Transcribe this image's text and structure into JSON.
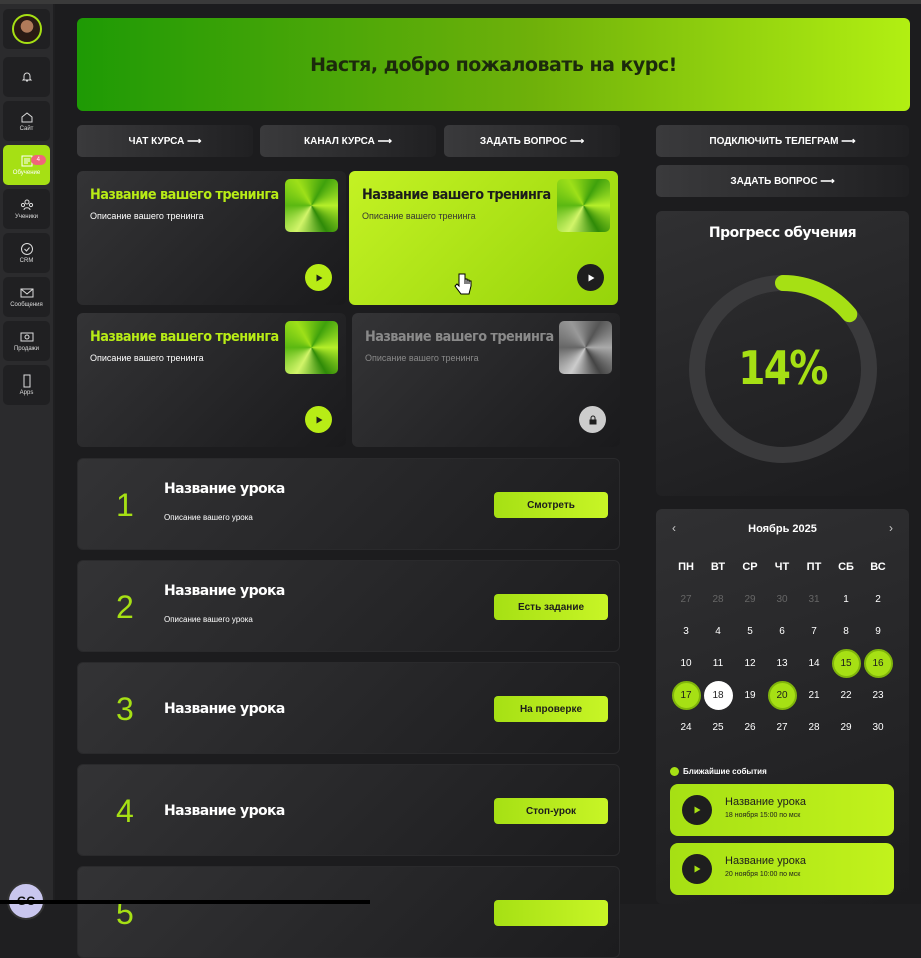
{
  "sidebar": {
    "items": [
      {
        "label": "",
        "icon": "bell-icon"
      },
      {
        "label": "Сайт",
        "icon": "home-icon"
      },
      {
        "label": "Обучение",
        "icon": "book-icon",
        "active": true,
        "badge": "4"
      },
      {
        "label": "Ученики",
        "icon": "users-icon"
      },
      {
        "label": "CRM",
        "icon": "check-circle-icon"
      },
      {
        "label": "Сообщения",
        "icon": "mail-icon"
      },
      {
        "label": "Продажи",
        "icon": "money-icon"
      },
      {
        "label": "Apps",
        "icon": "phone-icon"
      }
    ],
    "logo": "GC"
  },
  "banner": {
    "title": "Настя, добро пожаловать на курс!"
  },
  "actions": [
    "ЧАТ КУРСА ⟶",
    "КАНАЛ КУРСА ⟶",
    "ЗАДАТЬ ВОПРОС ⟶"
  ],
  "right_actions": [
    "ПОДКЛЮЧИТЬ ТЕЛЕГРАМ ⟶",
    "ЗАДАТЬ ВОПРОС ⟶"
  ],
  "trainings": [
    {
      "title": "Название вашего тренинга",
      "desc": "Описание вашего тренинга",
      "state": "open"
    },
    {
      "title": "Название вашего тренинга",
      "desc": "Описание вашего тренинга",
      "state": "highlighted"
    },
    {
      "title": "Название вашего тренинга",
      "desc": "Описание вашего тренинга",
      "state": "open"
    },
    {
      "title": "Название вашего тренинга",
      "desc": "Описание вашего тренинга",
      "state": "locked"
    }
  ],
  "lessons": [
    {
      "num": "1",
      "title": "Название урока",
      "desc": "Описание вашего урока",
      "button": "Смотреть"
    },
    {
      "num": "2",
      "title": "Название урока",
      "desc": "Описание вашего урока",
      "button": "Есть задание"
    },
    {
      "num": "3",
      "title": "Название урока",
      "desc": "",
      "button": "На проверке"
    },
    {
      "num": "4",
      "title": "Название урока",
      "desc": "",
      "button": "Стоп-урок"
    },
    {
      "num": "5",
      "title": "",
      "desc": "",
      "button": ""
    }
  ],
  "progress": {
    "title": "Прогресс обучения",
    "value": "14%",
    "fraction": 0.14,
    "accent": "#a6e014"
  },
  "calendar": {
    "month": "Ноябрь  2025",
    "weekdays": [
      "ПН",
      "ВТ",
      "СР",
      "ЧТ",
      "ПТ",
      "СБ",
      "ВС"
    ],
    "days": [
      [
        "27",
        "m"
      ],
      [
        "28",
        "m"
      ],
      [
        "29",
        "m"
      ],
      [
        "30",
        "m"
      ],
      [
        "31",
        "m"
      ],
      [
        "1",
        ""
      ],
      [
        "2",
        ""
      ],
      [
        "3",
        ""
      ],
      [
        "4",
        ""
      ],
      [
        "5",
        ""
      ],
      [
        "6",
        ""
      ],
      [
        "7",
        ""
      ],
      [
        "8",
        ""
      ],
      [
        "9",
        ""
      ],
      [
        "10",
        ""
      ],
      [
        "11",
        ""
      ],
      [
        "12",
        ""
      ],
      [
        "13",
        ""
      ],
      [
        "14",
        ""
      ],
      [
        "15",
        "g"
      ],
      [
        "16",
        "g"
      ],
      [
        "17",
        "g"
      ],
      [
        "18",
        "w"
      ],
      [
        "19",
        ""
      ],
      [
        "20",
        "g"
      ],
      [
        "21",
        ""
      ],
      [
        "22",
        ""
      ],
      [
        "23",
        ""
      ],
      [
        "24",
        ""
      ],
      [
        "25",
        ""
      ],
      [
        "26",
        ""
      ],
      [
        "27",
        ""
      ],
      [
        "28",
        ""
      ],
      [
        "29",
        ""
      ],
      [
        "30",
        ""
      ]
    ]
  },
  "events": {
    "title": "Ближайшие события",
    "items": [
      {
        "title": "Название урока",
        "date": "18 ноября 15:00 по мск"
      },
      {
        "title": "Название урока",
        "date": "20 ноября 10:00 по мск"
      }
    ]
  }
}
